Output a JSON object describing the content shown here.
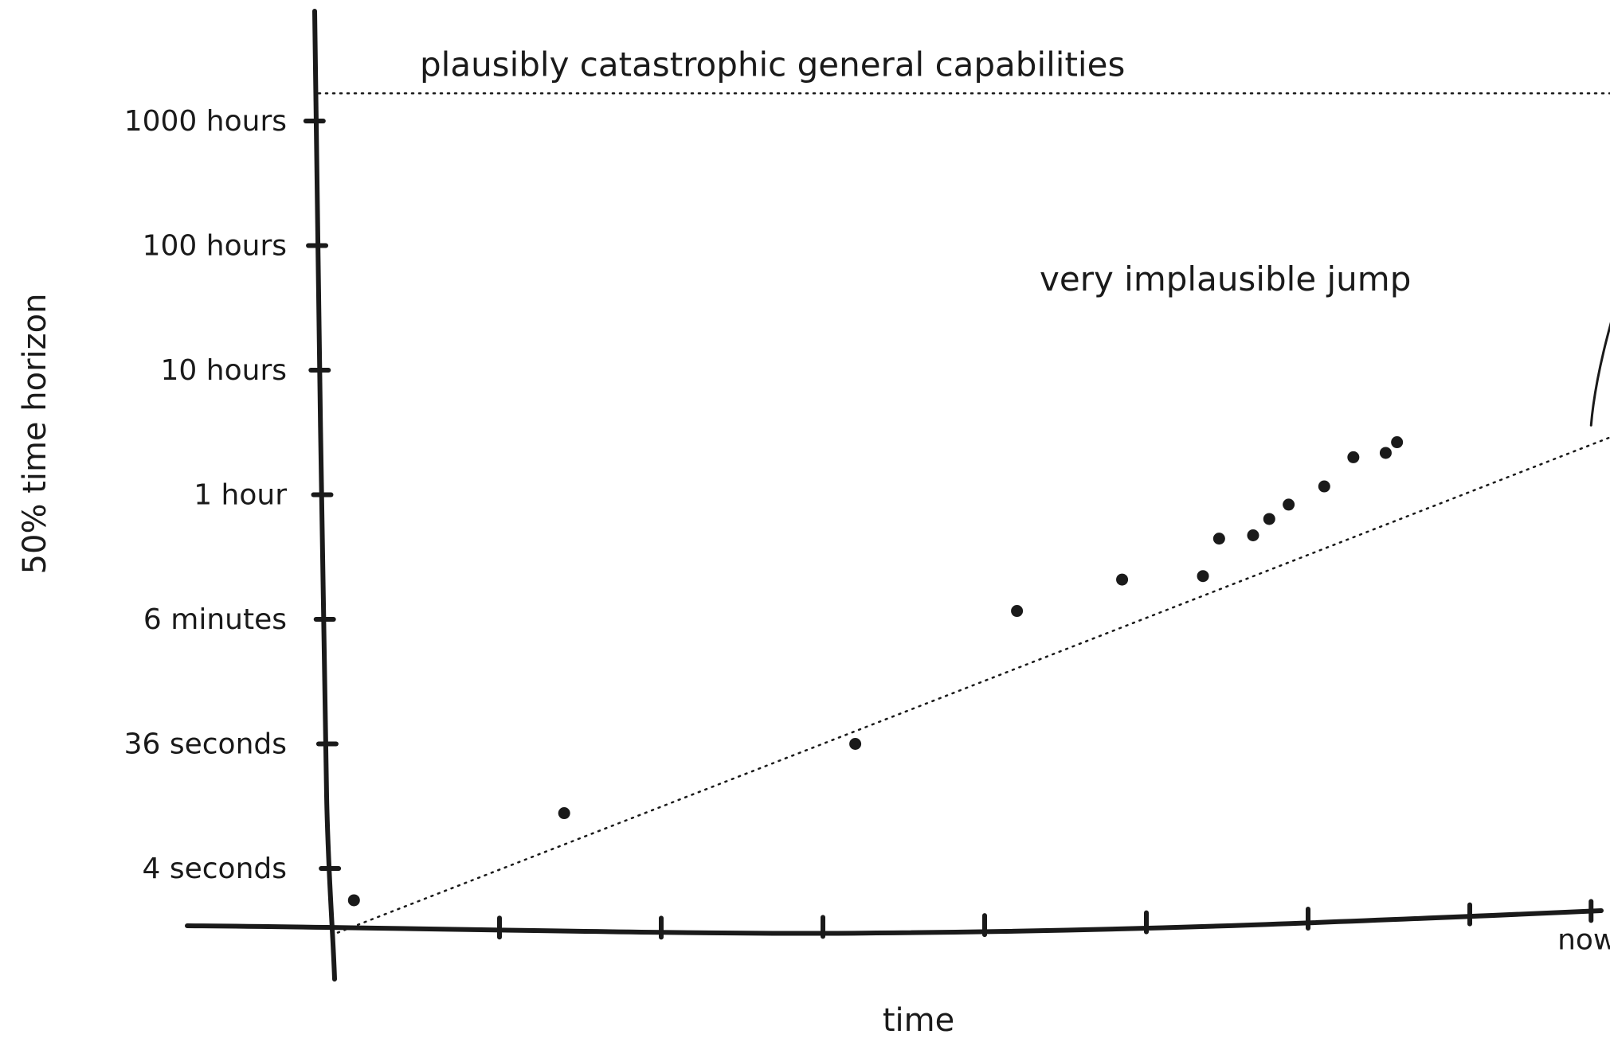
{
  "chart_data": {
    "type": "scatter",
    "title": "",
    "xlabel": "time",
    "ylabel": "50% time horizon",
    "y_scale": "log",
    "y_unit": "seconds",
    "grid": false,
    "y_ticks": [
      {
        "label": "4 seconds",
        "value": 3.6
      },
      {
        "label": "36 seconds",
        "value": 36
      },
      {
        "label": "6 minutes",
        "value": 360
      },
      {
        "label": "1 hour",
        "value": 3600
      },
      {
        "label": "10 hours",
        "value": 36000
      },
      {
        "label": "100 hours",
        "value": 360000
      },
      {
        "label": "1000 hours",
        "value": 3600000
      }
    ],
    "x_ticks": [
      {
        "label": "",
        "value": 1
      },
      {
        "label": "",
        "value": 2
      },
      {
        "label": "",
        "value": 3
      },
      {
        "label": "",
        "value": 4
      },
      {
        "label": "",
        "value": 5
      },
      {
        "label": "",
        "value": 6
      },
      {
        "label": "",
        "value": 7
      },
      {
        "label": "now",
        "value": 7.75
      },
      {
        "label": "",
        "value": 8.2
      }
    ],
    "series": [
      {
        "points": [
          {
            "x": 0.1,
            "y": 2
          },
          {
            "x": 1.4,
            "y": 10
          },
          {
            "x": 3.2,
            "y": 36
          },
          {
            "x": 4.2,
            "y": 420
          },
          {
            "x": 4.85,
            "y": 750
          },
          {
            "x": 5.35,
            "y": 800
          },
          {
            "x": 5.45,
            "y": 1600
          },
          {
            "x": 5.66,
            "y": 1700
          },
          {
            "x": 5.76,
            "y": 2300
          },
          {
            "x": 5.88,
            "y": 3000
          },
          {
            "x": 6.1,
            "y": 4200
          },
          {
            "x": 6.28,
            "y": 7200
          },
          {
            "x": 6.48,
            "y": 7800
          },
          {
            "x": 6.55,
            "y": 9500
          }
        ]
      }
    ],
    "trend_line": {
      "x0": 0,
      "y0": 1.1,
      "x1": 7.9,
      "y1": 10800
    },
    "threshold": {
      "label": "plausibly catastrophic general capabilities",
      "y": 6000000
    },
    "threshold_point": {
      "x": 8.2,
      "y": 6000000
    },
    "jump_annotation": {
      "label": "very implausible jump",
      "from": {
        "x": 7.75,
        "y": 13000
      },
      "to": {
        "x": 8.18,
        "y": 3700000
      }
    }
  }
}
